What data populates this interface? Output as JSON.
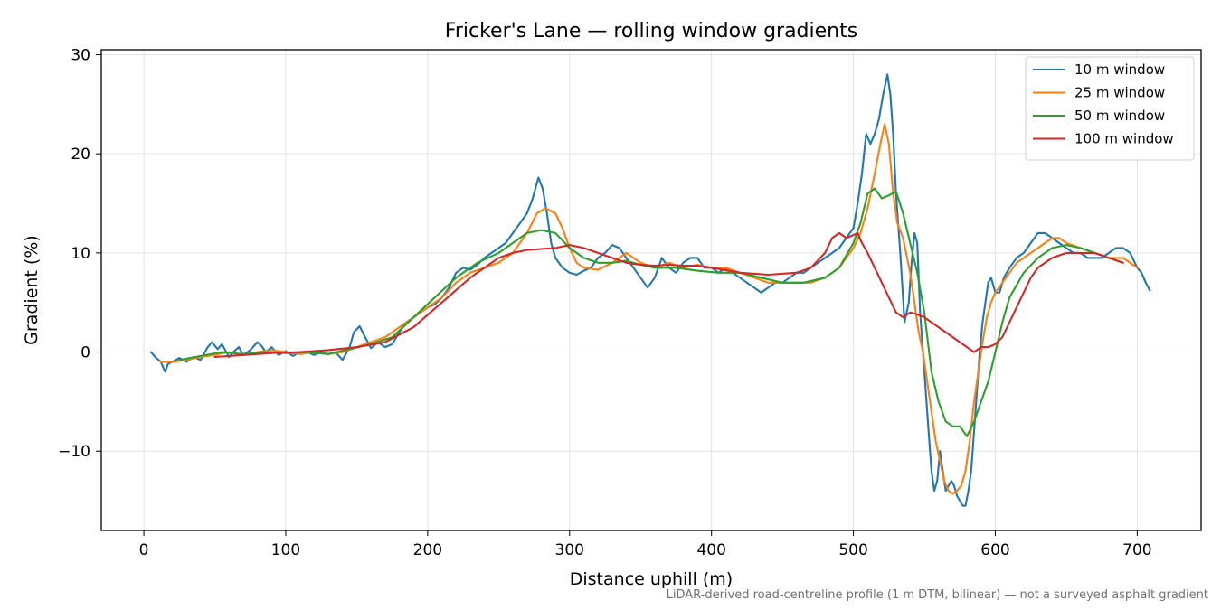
{
  "chart_data": {
    "type": "line",
    "title": "Fricker's Lane — rolling window gradients",
    "xlabel": "Distance uphill (m)",
    "ylabel": "Gradient (%)",
    "xlim": [
      -30,
      745
    ],
    "ylim": [
      -18,
      30.5
    ],
    "xticks": [
      0,
      100,
      200,
      300,
      400,
      500,
      600,
      700
    ],
    "yticks": [
      -10,
      0,
      10,
      20,
      30
    ],
    "grid": true,
    "legend_position": "top-right",
    "series": [
      {
        "name": "10 m window",
        "color": "#1f77b4",
        "x": [
          5,
          8,
          12,
          15,
          17,
          20,
          25,
          30,
          35,
          40,
          45,
          48,
          52,
          55,
          60,
          63,
          67,
          70,
          75,
          80,
          83,
          86,
          90,
          95,
          100,
          105,
          110,
          115,
          120,
          125,
          130,
          135,
          140,
          145,
          148,
          152,
          156,
          160,
          165,
          170,
          175,
          180,
          185,
          190,
          195,
          200,
          205,
          210,
          215,
          220,
          225,
          230,
          235,
          240,
          245,
          250,
          255,
          260,
          265,
          270,
          274,
          278,
          281,
          284,
          287,
          290,
          295,
          300,
          305,
          310,
          315,
          320,
          325,
          330,
          335,
          340,
          345,
          350,
          355,
          360,
          365,
          370,
          375,
          380,
          385,
          390,
          395,
          400,
          405,
          410,
          415,
          420,
          425,
          430,
          435,
          440,
          445,
          450,
          455,
          460,
          465,
          470,
          475,
          480,
          485,
          490,
          495,
          500,
          503,
          506,
          509,
          512,
          515,
          518,
          521,
          524,
          526,
          528,
          530,
          533,
          536,
          539,
          541,
          543,
          545,
          547,
          549,
          551,
          553,
          555,
          557,
          559,
          561,
          563,
          565,
          567,
          569,
          571,
          573,
          575,
          577,
          579,
          581,
          583,
          585,
          587,
          589,
          591,
          593,
          595,
          597,
          600,
          603,
          606,
          610,
          615,
          620,
          625,
          630,
          635,
          640,
          645,
          650,
          655,
          660,
          665,
          670,
          675,
          680,
          685,
          690,
          695,
          700,
          703,
          706,
          709
        ],
        "y": [
          0,
          -0.5,
          -1,
          -2,
          -1.2,
          -1,
          -0.6,
          -1,
          -0.5,
          -0.8,
          0.5,
          1.0,
          0.3,
          0.8,
          -0.5,
          0,
          0.5,
          -0.3,
          0.2,
          1.0,
          0.6,
          0,
          0.5,
          -0.3,
          0.1,
          -0.4,
          0,
          0,
          -0.3,
          0,
          -0.2,
          0,
          -0.8,
          0.5,
          2.0,
          2.6,
          1.5,
          0.4,
          1.0,
          0.5,
          0.8,
          2.0,
          3.0,
          3.5,
          4.0,
          4.5,
          4.8,
          5.5,
          6.5,
          8.0,
          8.5,
          8.3,
          8.8,
          9.5,
          10.0,
          10.5,
          11.0,
          12.0,
          13.0,
          14.0,
          15.5,
          17.6,
          16.5,
          14.0,
          11.0,
          9.5,
          8.5,
          8.0,
          7.8,
          8.2,
          8.5,
          9.5,
          10.0,
          10.8,
          10.5,
          9.5,
          8.5,
          7.5,
          6.5,
          7.5,
          9.5,
          8.5,
          8.0,
          9.0,
          9.5,
          9.5,
          8.5,
          8.5,
          8.0,
          8.5,
          8.0,
          7.5,
          7.0,
          6.5,
          6.0,
          6.5,
          7.0,
          7.0,
          7.5,
          8.0,
          8.0,
          8.5,
          9.0,
          9.5,
          10.0,
          10.5,
          11.5,
          12.5,
          15.0,
          18.0,
          22.0,
          21.0,
          22.0,
          23.5,
          26.0,
          28.0,
          26.0,
          22.0,
          16.0,
          10.0,
          3.0,
          5.0,
          9.0,
          12.0,
          11.0,
          4.0,
          0,
          -4.0,
          -8.0,
          -12.0,
          -14.0,
          -13.0,
          -10.0,
          -12.0,
          -14.0,
          -13.5,
          -13.0,
          -13.5,
          -14.5,
          -15.0,
          -15.5,
          -15.5,
          -14.0,
          -12.0,
          -8.0,
          -4.0,
          0,
          3.0,
          5.0,
          7.0,
          7.5,
          6.0,
          6.0,
          7.5,
          8.5,
          9.5,
          10.0,
          11.0,
          12.0,
          12.0,
          11.5,
          11.0,
          10.5,
          10.0,
          10.0,
          9.5,
          9.5,
          9.5,
          10.0,
          10.5,
          10.5,
          10.0,
          8.5,
          8.0,
          7.0,
          6.2
        ]
      },
      {
        "name": "25 m window",
        "color": "#ff7f0e",
        "x": [
          12,
          20,
          30,
          40,
          50,
          60,
          70,
          80,
          90,
          100,
          110,
          120,
          130,
          140,
          150,
          160,
          170,
          180,
          190,
          200,
          210,
          220,
          230,
          240,
          250,
          260,
          270,
          277,
          283,
          290,
          295,
          300,
          305,
          310,
          320,
          330,
          340,
          350,
          360,
          370,
          380,
          390,
          400,
          410,
          420,
          430,
          440,
          450,
          460,
          470,
          480,
          490,
          500,
          505,
          510,
          515,
          519,
          522,
          525,
          528,
          531,
          535,
          540,
          543,
          546,
          549,
          552,
          555,
          558,
          561,
          564,
          567,
          570,
          573,
          576,
          579,
          582,
          585,
          588,
          591,
          594,
          597,
          600,
          605,
          610,
          615,
          620,
          625,
          630,
          635,
          640,
          645,
          650,
          660,
          670,
          680,
          690,
          700
        ],
        "y": [
          -1.0,
          -1.0,
          -0.8,
          -0.5,
          -0.3,
          0,
          -0.3,
          0,
          0.2,
          0,
          -0.2,
          0,
          -0.2,
          0,
          0.5,
          1.0,
          1.5,
          2.5,
          3.5,
          4.5,
          5.5,
          7.0,
          8.0,
          8.5,
          9.0,
          10.0,
          12.0,
          14.0,
          14.5,
          14.0,
          12.5,
          10.5,
          9.0,
          8.5,
          8.3,
          9.0,
          10.0,
          9.0,
          8.5,
          9.0,
          8.5,
          8.8,
          8.5,
          8.5,
          8.0,
          7.5,
          7.0,
          7.0,
          7.0,
          7.0,
          7.5,
          8.5,
          10.5,
          12.0,
          14.5,
          18.0,
          21.0,
          23.0,
          21.0,
          16.0,
          13.0,
          11.5,
          8.0,
          5.0,
          2.0,
          0,
          -3.0,
          -6.0,
          -9.0,
          -11.0,
          -13.0,
          -14.0,
          -14.3,
          -14.0,
          -13.5,
          -12.0,
          -9.0,
          -5.0,
          -2.0,
          1.0,
          3.5,
          5.0,
          6.0,
          7.0,
          8.0,
          9.0,
          9.5,
          10.0,
          10.5,
          11.0,
          11.5,
          11.5,
          11.0,
          10.5,
          10.0,
          9.5,
          9.5,
          8.5
        ]
      },
      {
        "name": "50 m window",
        "color": "#2ca02c",
        "x": [
          25,
          40,
          55,
          70,
          85,
          100,
          115,
          130,
          145,
          160,
          175,
          190,
          205,
          220,
          235,
          250,
          260,
          270,
          280,
          290,
          300,
          310,
          320,
          330,
          340,
          350,
          360,
          375,
          390,
          405,
          420,
          435,
          450,
          465,
          480,
          490,
          500,
          505,
          510,
          515,
          520,
          525,
          530,
          535,
          540,
          545,
          550,
          555,
          560,
          565,
          570,
          575,
          580,
          585,
          590,
          595,
          600,
          605,
          610,
          620,
          630,
          640,
          650,
          660,
          670,
          680,
          690
        ],
        "y": [
          -0.8,
          -0.4,
          0,
          -0.2,
          0,
          -0.1,
          0,
          -0.2,
          0.3,
          0.8,
          1.5,
          3.5,
          5.5,
          7.5,
          9.0,
          10.0,
          11.0,
          12.0,
          12.3,
          12.0,
          10.5,
          9.5,
          9.0,
          9.0,
          9.2,
          8.8,
          8.5,
          8.5,
          8.2,
          8.0,
          8.0,
          7.5,
          7.0,
          7.0,
          7.5,
          8.5,
          11.0,
          13.0,
          16.0,
          16.5,
          15.5,
          15.8,
          16.2,
          14.0,
          11.0,
          8.0,
          4.0,
          -2.0,
          -5.0,
          -7.0,
          -7.5,
          -7.5,
          -8.5,
          -7.0,
          -5.0,
          -3.0,
          0,
          3.0,
          5.5,
          8.0,
          9.5,
          10.5,
          10.8,
          10.5,
          10.0,
          9.5,
          9.0
        ]
      },
      {
        "name": "100 m window",
        "color": "#d62728",
        "x": [
          50,
          70,
          90,
          110,
          130,
          150,
          170,
          190,
          210,
          230,
          250,
          260,
          270,
          280,
          290,
          300,
          310,
          320,
          330,
          340,
          350,
          360,
          370,
          380,
          390,
          400,
          420,
          440,
          460,
          470,
          480,
          485,
          490,
          495,
          500,
          503,
          506,
          510,
          515,
          520,
          525,
          530,
          535,
          540,
          545,
          550,
          555,
          560,
          565,
          570,
          575,
          580,
          585,
          590,
          595,
          600,
          605,
          610,
          615,
          620,
          625,
          630,
          640,
          650,
          660,
          670,
          680,
          690
        ],
        "y": [
          -0.5,
          -0.3,
          -0.1,
          0,
          0.2,
          0.5,
          1.0,
          2.5,
          5.0,
          7.5,
          9.5,
          10.0,
          10.3,
          10.4,
          10.5,
          10.8,
          10.5,
          10.0,
          9.5,
          9.0,
          8.8,
          8.7,
          8.8,
          8.7,
          8.7,
          8.5,
          8.0,
          7.8,
          8.0,
          8.5,
          10.0,
          11.5,
          12.0,
          11.5,
          11.8,
          12.0,
          11.0,
          10.0,
          8.5,
          7.0,
          5.5,
          4.0,
          3.5,
          4.0,
          3.8,
          3.5,
          3.0,
          2.5,
          2.0,
          1.5,
          1.0,
          0.5,
          0,
          0.5,
          0.5,
          0.8,
          1.5,
          3.0,
          4.5,
          6.0,
          7.5,
          8.5,
          9.5,
          10.0,
          10.0,
          10.0,
          9.5,
          9.0
        ]
      }
    ]
  },
  "caption": "LiDAR-derived road-centreline profile (1 m DTM, bilinear) — not a surveyed asphalt gradient"
}
